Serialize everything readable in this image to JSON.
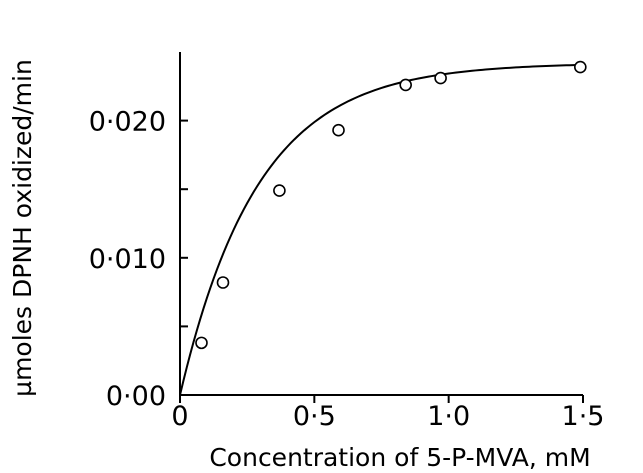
{
  "chart_data": {
    "type": "scatter",
    "title": "",
    "xlabel": "Concentration  of  5-P-MVA, mM",
    "ylabel": "µmoles DPNH oxidized/min",
    "xlim": [
      0,
      1.5
    ],
    "ylim": [
      0,
      0.025
    ],
    "x_ticks": [
      {
        "value": 0,
        "label": "0"
      },
      {
        "value": 0.5,
        "label": "0·5"
      },
      {
        "value": 1.0,
        "label": "1·0"
      },
      {
        "value": 1.5,
        "label": "1·5"
      }
    ],
    "y_ticks": [
      {
        "value": 0,
        "label": "0·00"
      },
      {
        "value": 0.005,
        "label": ""
      },
      {
        "value": 0.01,
        "label": "0·010"
      },
      {
        "value": 0.015,
        "label": ""
      },
      {
        "value": 0.02,
        "label": "0·020"
      }
    ],
    "series": [
      {
        "points": [
          {
            "x": 0.08,
            "y": 0.0038
          },
          {
            "x": 0.16,
            "y": 0.0082
          },
          {
            "x": 0.37,
            "y": 0.0149
          },
          {
            "x": 0.59,
            "y": 0.0193
          },
          {
            "x": 0.84,
            "y": 0.0226
          },
          {
            "x": 0.97,
            "y": 0.0231
          },
          {
            "x": 1.49,
            "y": 0.0239
          }
        ]
      }
    ],
    "fit_curve": {
      "form": "saturation",
      "vmax": 0.0242,
      "k": 3.45
    },
    "grid": false,
    "legend": "none",
    "colors": {
      "ink": "#000000",
      "marker_fill": "#ffffff"
    }
  }
}
